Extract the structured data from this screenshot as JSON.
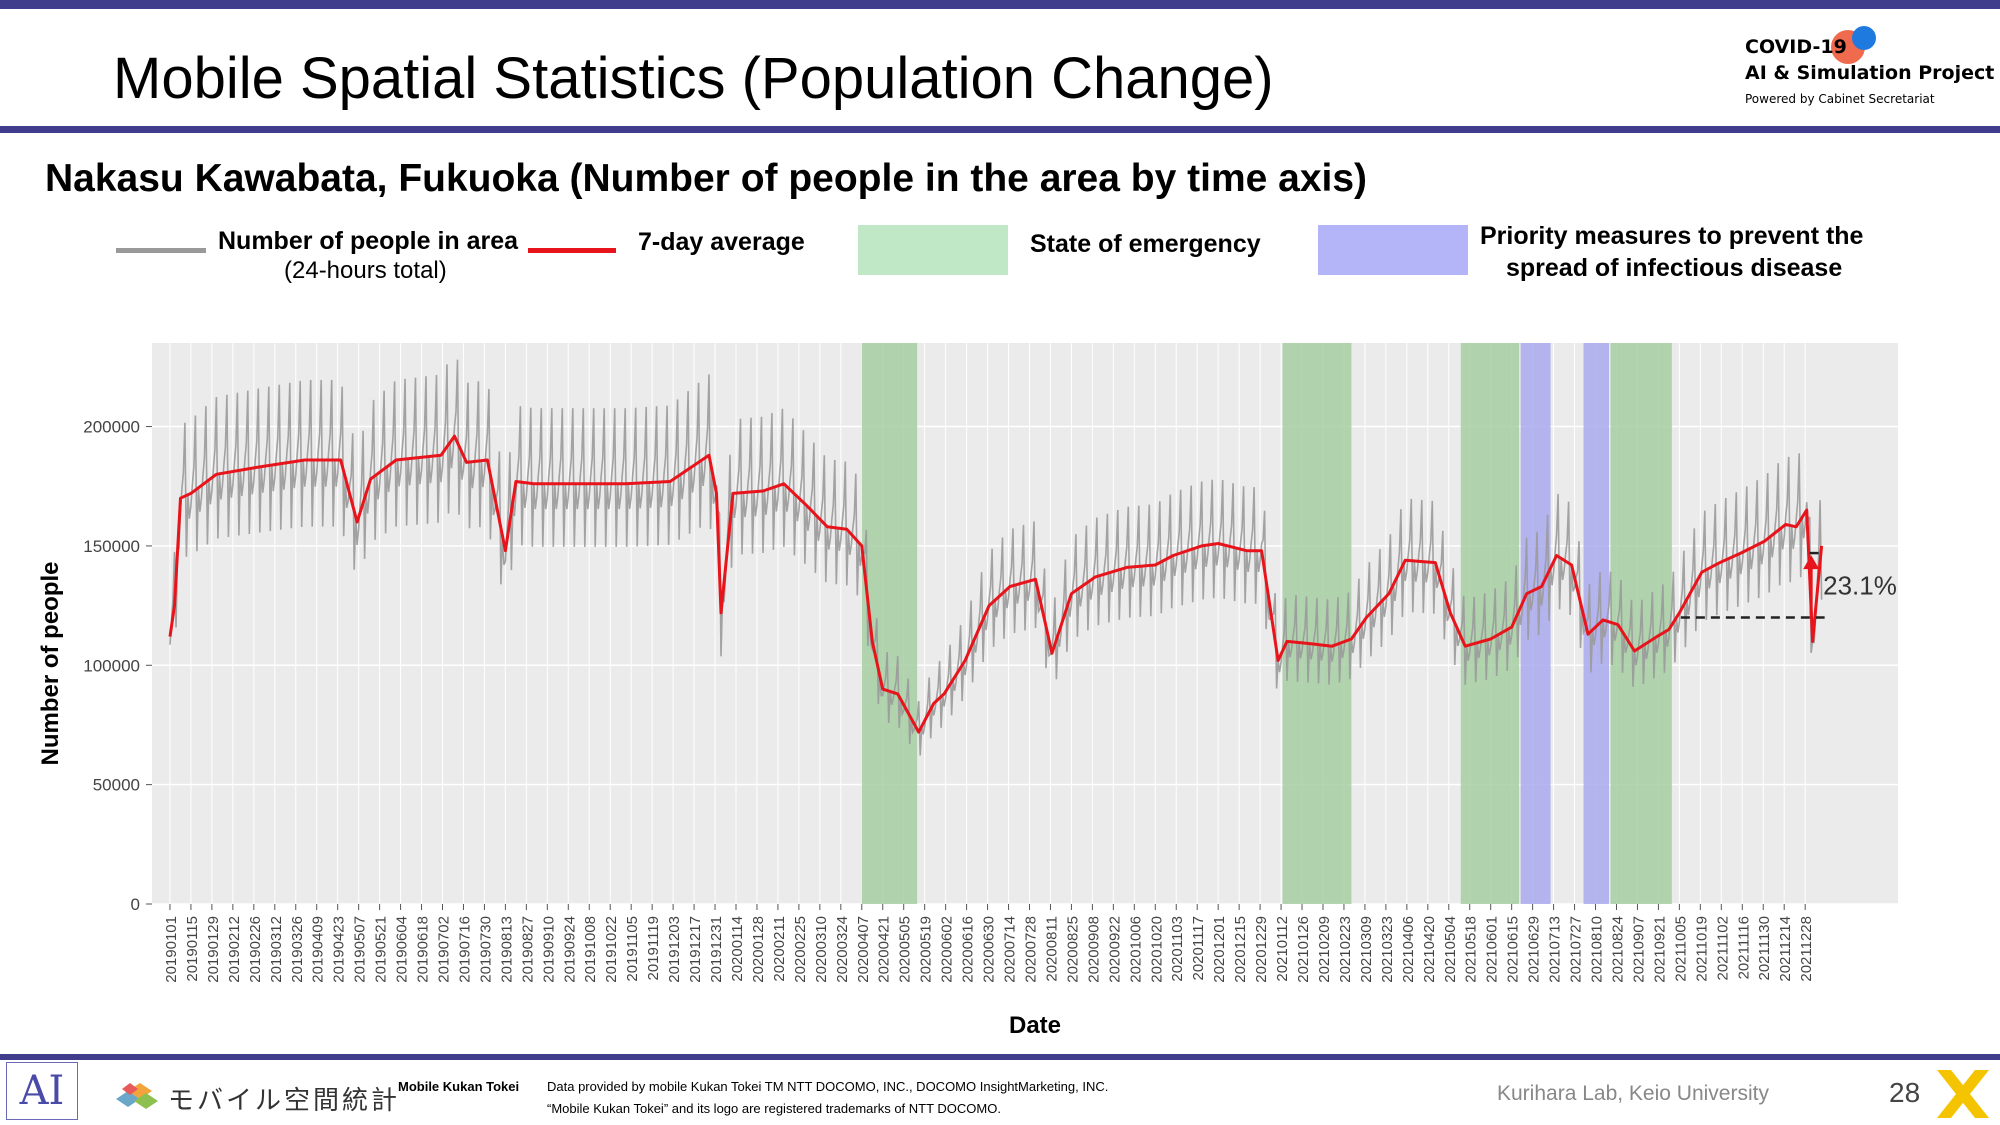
{
  "page": {
    "title": "Mobile Spatial Statistics (Population Change)",
    "subtitle": "Nakasu Kawabata, Fukuoka (Number of people in the area by time axis)",
    "project_logo": {
      "line1": "COVID-19",
      "line2": "AI & Simulation Project",
      "line3": "Powered by Cabinet Secretariat"
    }
  },
  "legend": {
    "people": {
      "label": "Number of people in area",
      "sub": "(24-hours total)",
      "color": "#999999"
    },
    "avg": {
      "label": "7-day average",
      "color": "#e8141b"
    },
    "emergency": {
      "label": "State of emergency",
      "color": "#c1e8c6"
    },
    "priority": {
      "label": "Priority measures to prevent the spread of infectious disease",
      "line1": "Priority measures to prevent the",
      "line2": "spread of infectious disease",
      "color": "#b4b4f8"
    }
  },
  "chart_data": {
    "type": "line",
    "title": "Nakasu Kawabata, Fukuoka (Number of people in the area by time axis)",
    "xlabel": "Date",
    "ylabel": "Number of people",
    "ylim": [
      0,
      235000
    ],
    "yticks": [
      0,
      50000,
      100000,
      150000,
      200000
    ],
    "ytick_labels": [
      "0",
      "50000",
      "100000",
      "150000",
      "200000"
    ],
    "grid": true,
    "legend_position": "top",
    "x_range": [
      "2018-12-20",
      "2022-02-28"
    ],
    "x_tick_labels": [
      "20190101",
      "20190115",
      "20190129",
      "20190212",
      "20190226",
      "20190312",
      "20190326",
      "20190409",
      "20190423",
      "20190507",
      "20190521",
      "20190604",
      "20190618",
      "20190702",
      "20190716",
      "20190730",
      "20190813",
      "20190827",
      "20190910",
      "20190924",
      "20191008",
      "20191022",
      "20191105",
      "20191119",
      "20191203",
      "20191217",
      "20191231",
      "20200114",
      "20200128",
      "20200211",
      "20200225",
      "20200310",
      "20200324",
      "20200407",
      "20200421",
      "20200505",
      "20200519",
      "20200602",
      "20200616",
      "20200630",
      "20200714",
      "20200728",
      "20200811",
      "20200825",
      "20200908",
      "20200922",
      "20201006",
      "20201020",
      "20201103",
      "20201117",
      "20201201",
      "20201215",
      "20201229",
      "20210112",
      "20210126",
      "20210209",
      "20210223",
      "20210309",
      "20210323",
      "20210406",
      "20210420",
      "20210504",
      "20210518",
      "20210601",
      "20210615",
      "20210629",
      "20210713",
      "20210727",
      "20210810",
      "20210824",
      "20210907",
      "20210921",
      "20211005",
      "20211019",
      "20211102",
      "20211116",
      "20211130",
      "20211214",
      "20211228"
    ],
    "shaded_periods": [
      {
        "type": "emergency",
        "start": "2020-04-07",
        "end": "2020-05-14",
        "color": "#a6cfa3"
      },
      {
        "type": "emergency",
        "start": "2021-01-13",
        "end": "2021-02-28",
        "color": "#a6cfa3"
      },
      {
        "type": "emergency",
        "start": "2021-05-12",
        "end": "2021-06-20",
        "color": "#a6cfa3"
      },
      {
        "type": "priority",
        "start": "2021-06-21",
        "end": "2021-07-11",
        "color": "#a9a9ee"
      },
      {
        "type": "priority",
        "start": "2021-08-02",
        "end": "2021-08-19",
        "color": "#a9a9ee"
      },
      {
        "type": "emergency",
        "start": "2021-08-20",
        "end": "2021-09-30",
        "color": "#a6cfa3"
      }
    ],
    "series": [
      {
        "name": "7-day average",
        "color": "#e8141b",
        "x": [
          "2019-01-01",
          "2019-01-04",
          "2019-01-08",
          "2019-01-15",
          "2019-02-01",
          "2019-03-01",
          "2019-04-01",
          "2019-04-25",
          "2019-05-06",
          "2019-05-15",
          "2019-06-01",
          "2019-07-01",
          "2019-07-10",
          "2019-07-18",
          "2019-08-01",
          "2019-08-13",
          "2019-08-20",
          "2019-09-01",
          "2019-10-01",
          "2019-11-01",
          "2019-12-01",
          "2019-12-27",
          "2020-01-01",
          "2020-01-04",
          "2020-01-12",
          "2020-02-01",
          "2020-02-15",
          "2020-03-01",
          "2020-03-15",
          "2020-03-28",
          "2020-04-07",
          "2020-04-14",
          "2020-04-21",
          "2020-05-01",
          "2020-05-08",
          "2020-05-15",
          "2020-05-25",
          "2020-06-01",
          "2020-06-15",
          "2020-07-01",
          "2020-07-15",
          "2020-08-01",
          "2020-08-12",
          "2020-08-25",
          "2020-09-10",
          "2020-10-01",
          "2020-10-20",
          "2020-11-01",
          "2020-11-20",
          "2020-12-01",
          "2020-12-20",
          "2020-12-30",
          "2021-01-10",
          "2021-01-16",
          "2021-02-01",
          "2021-02-15",
          "2021-02-28",
          "2021-03-10",
          "2021-03-25",
          "2021-04-05",
          "2021-04-25",
          "2021-05-05",
          "2021-05-15",
          "2021-06-01",
          "2021-06-15",
          "2021-06-25",
          "2021-07-05",
          "2021-07-15",
          "2021-07-25",
          "2021-08-05",
          "2021-08-15",
          "2021-08-25",
          "2021-09-05",
          "2021-09-20",
          "2021-09-28",
          "2021-10-05",
          "2021-10-20",
          "2021-11-01",
          "2021-11-15",
          "2021-12-01",
          "2021-12-15",
          "2021-12-22",
          "2021-12-29",
          "2022-01-02",
          "2022-01-08"
        ],
        "y": [
          112000,
          125000,
          170000,
          172000,
          180000,
          183000,
          186000,
          186000,
          160000,
          178000,
          186000,
          188000,
          196000,
          185000,
          186000,
          148000,
          177000,
          176000,
          176000,
          176000,
          177000,
          188000,
          172000,
          122000,
          172000,
          173000,
          176000,
          167000,
          158000,
          157000,
          150000,
          110000,
          90000,
          88000,
          80000,
          72000,
          84000,
          88000,
          102000,
          125000,
          133000,
          136000,
          105000,
          130000,
          137000,
          141000,
          142000,
          146000,
          150000,
          151000,
          148000,
          148000,
          102000,
          110000,
          109000,
          108000,
          111000,
          120000,
          130000,
          144000,
          143000,
          122000,
          108000,
          111000,
          116000,
          130000,
          133000,
          146000,
          142000,
          113000,
          119000,
          117000,
          106000,
          112000,
          115000,
          122000,
          139000,
          143000,
          147000,
          152000,
          159000,
          158000,
          165000,
          110000,
          150000
        ]
      },
      {
        "name": "Number of people in area",
        "color": "#999999",
        "daily_cycle_envelope": {
          "weekday_peak_vs_avg": 1.18,
          "weekend_trough_vs_avg": 0.8
        }
      }
    ],
    "annotations": [
      {
        "text": "23.1%",
        "from_value": 120000,
        "to_value": 147000,
        "x_range": [
          "2021-10-06",
          "2022-01-10"
        ]
      }
    ]
  },
  "footer": {
    "logo_ai": "AI",
    "mobile_kukan_jp": "モバイル空間統計",
    "mobile_kukan_en": "Mobile Kukan Tokei",
    "data_line1": "Data provided by mobile Kukan Tokei TM NTT DOCOMO, INC., DOCOMO InsightMarketing, INC.",
    "data_line2": "“Mobile Kukan Tokei” and its logo are registered trademarks of NTT DOCOMO.",
    "lab": "Kurihara Lab, Keio University",
    "page_number": "28"
  }
}
